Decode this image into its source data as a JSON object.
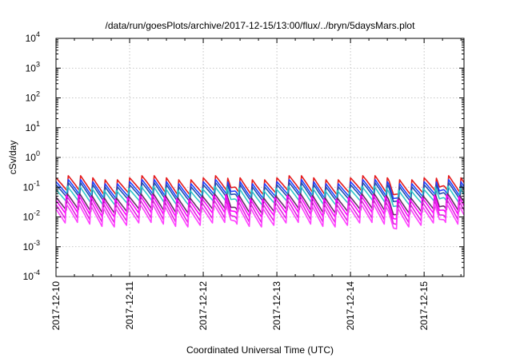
{
  "chart_data": {
    "type": "line",
    "title": "/data/run/goesPlots/archive/2017-12-15/13:00/flux/../bryn/5daysMars.plot",
    "xlabel": "Coordinated Universal Time (UTC)",
    "ylabel": "cSv/day",
    "yscale": "log",
    "ylim": [
      0.0001,
      10000
    ],
    "xlim": [
      "2017-12-10T00:00",
      "2017-12-15T13:00"
    ],
    "grid": true,
    "legend": "none",
    "x_tick_labels": [
      "2017-12-10",
      "2017-12-11",
      "2017-12-12",
      "2017-12-13",
      "2017-12-14",
      "2017-12-15"
    ],
    "y_tick_labels": [
      {
        "base": "10",
        "exp": "-4"
      },
      {
        "base": "10",
        "exp": "-3"
      },
      {
        "base": "10",
        "exp": "-2"
      },
      {
        "base": "10",
        "exp": "-1"
      },
      {
        "base": "10",
        "exp": "0"
      },
      {
        "base": "10",
        "exp": "1"
      },
      {
        "base": "10",
        "exp": "2"
      },
      {
        "base": "10",
        "exp": "3"
      },
      {
        "base": "10",
        "exp": "4"
      }
    ],
    "series_pattern": {
      "kind": "periodic-sawtooth",
      "period_hours": 4,
      "note_dips": [
        "2017-12-12T09:00",
        "2017-12-14T14:00",
        "2017-12-15T05:00"
      ]
    },
    "series": [
      {
        "color": "#e41a1c",
        "base": 0.11,
        "amp": 0.55
      },
      {
        "color": "#2040ff",
        "base": 0.085,
        "amp": 0.55
      },
      {
        "color": "#1f4fb0",
        "base": 0.07,
        "amp": 0.55
      },
      {
        "color": "#30c8c8",
        "base": 0.05,
        "amp": 0.55
      },
      {
        "color": "#6a2a6a",
        "base": 0.028,
        "amp": 0.6
      },
      {
        "color": "#ff00ff",
        "base": 0.022,
        "amp": 0.65
      },
      {
        "color": "#e020e0",
        "base": 0.016,
        "amp": 0.7
      },
      {
        "color": "#ff40ff",
        "base": 0.012,
        "amp": 0.7
      }
    ]
  }
}
